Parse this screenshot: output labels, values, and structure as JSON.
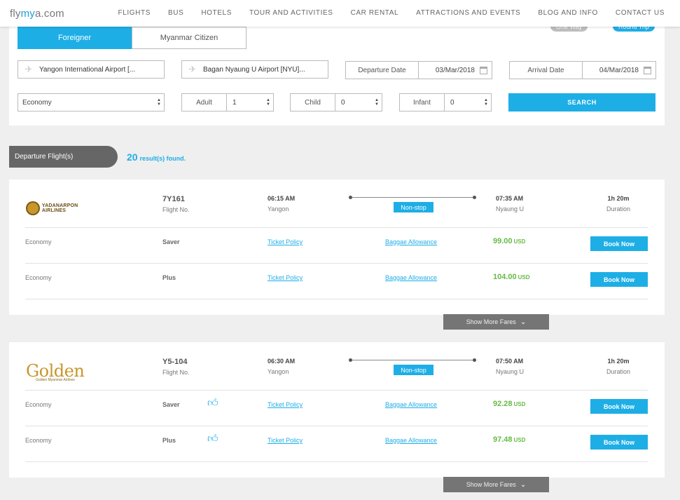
{
  "site": {
    "logo_pre": "fly",
    "logo_my": "my",
    "logo_post": "a.com"
  },
  "nav": [
    "FLIGHTS",
    "BUS",
    "HOTELS",
    "TOUR AND ACTIVITIES",
    "CAR RENTAL",
    "ATTRACTIONS AND EVENTS",
    "BLOG AND INFO",
    "CONTACT US"
  ],
  "trip_types": {
    "one_way": "One Way",
    "round_trip": "Round Trip"
  },
  "passenger_tabs": {
    "foreigner": "Foreigner",
    "citizen": "Myanmar Citizen"
  },
  "search": {
    "from": "Yangon International Airport [...",
    "to": "Bagan Nyaung U Airport [NYU]...",
    "departure_label": "Departure Date",
    "departure_value": "03/Mar/2018",
    "arrival_label": "Arrival Date",
    "arrival_value": "04/Mar/2018",
    "cabin": "Economy",
    "adult_label": "Adult",
    "adult_value": "1",
    "child_label": "Child",
    "child_value": "0",
    "infant_label": "Infant",
    "infant_value": "0",
    "button": "SEARCH"
  },
  "results_header": {
    "label": "Departure Flight(s)",
    "count": "20",
    "suffix": "result(s) found."
  },
  "flights": [
    {
      "airline": "YADANARPON AIRLINES",
      "flight_no": "7Y161",
      "flight_no_label": "Flight No.",
      "dep_time": "06:15 AM",
      "dep_city": "Yangon",
      "stop": "Non-stop",
      "arr_time": "07:35 AM",
      "arr_city": "Nyaung U",
      "duration": "1h 20m",
      "duration_label": "Duration",
      "fares": [
        {
          "cls": "Economy",
          "type": "Saver",
          "policy": "Ticket Policy",
          "baggage": "Baggae Allowance",
          "price": "99.00",
          "currency": "USD",
          "book": "Book Now"
        },
        {
          "cls": "Economy",
          "type": "Plus",
          "policy": "Ticket Policy",
          "baggage": "Baggae Allowance",
          "price": "104.00",
          "currency": "USD",
          "book": "Book Now"
        }
      ],
      "more": "Show More Fares"
    },
    {
      "airline": "Golden",
      "airline_sub": "Golden Myanmar Airlines",
      "flight_no": "Y5-104",
      "flight_no_label": "Flight No.",
      "dep_time": "06:30 AM",
      "dep_city": "Yangon",
      "stop": "Non-stop",
      "arr_time": "07:50 AM",
      "arr_city": "Nyaung U",
      "duration": "1h 20m",
      "duration_label": "Duration",
      "fares": [
        {
          "cls": "Economy",
          "type": "Saver",
          "policy": "Ticket Policy",
          "baggage": "Baggae Allowance",
          "price": "92.28",
          "currency": "USD",
          "book": "Book Now"
        },
        {
          "cls": "Economy",
          "type": "Plus",
          "policy": "Ticket Policy",
          "baggage": "Baggae Allowance",
          "price": "97.48",
          "currency": "USD",
          "book": "Book Now"
        }
      ],
      "more": "Show More Fares"
    }
  ]
}
